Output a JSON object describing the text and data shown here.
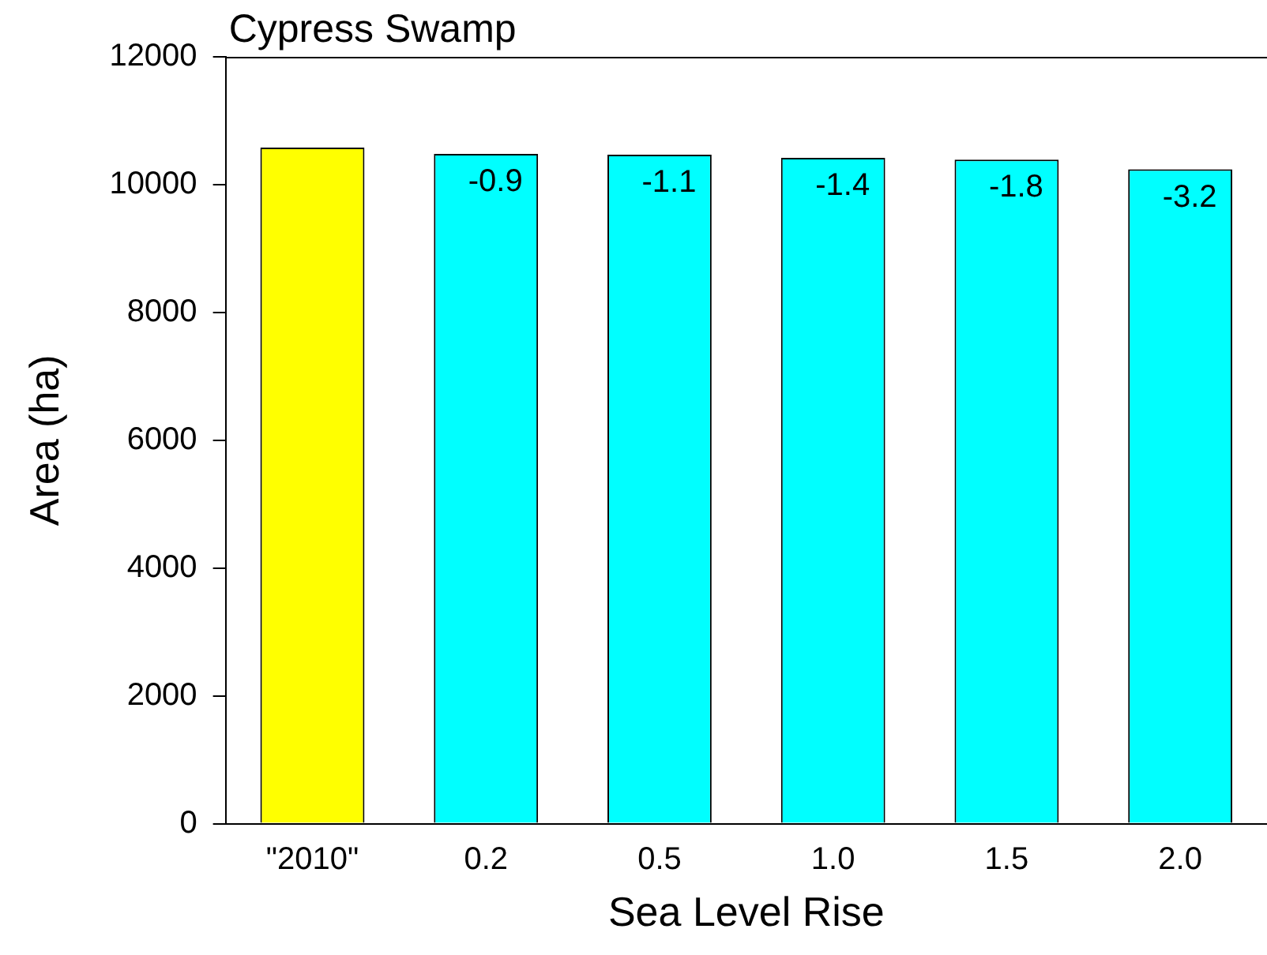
{
  "chart_data": {
    "type": "bar",
    "title": "Cypress Swamp",
    "xlabel": "Sea Level Rise",
    "ylabel": "Area (ha)",
    "categories": [
      "\"2010\"",
      "0.2",
      "0.5",
      "1.0",
      "1.5",
      "2.0"
    ],
    "values": [
      10580,
      10480,
      10470,
      10420,
      10390,
      10240
    ],
    "colors": [
      "#ffff00",
      "#00ffff",
      "#00ffff",
      "#00ffff",
      "#00ffff",
      "#00ffff"
    ],
    "annotations": [
      {
        "text": "-0.9",
        "x": "0.2",
        "y": 10480
      },
      {
        "text": "-1.1",
        "x": "0.5",
        "y": 10470
      },
      {
        "text": "-1.4",
        "x": "1.0",
        "y": 10420
      },
      {
        "text": "-1.8",
        "x": "1.5",
        "y": 10390
      },
      {
        "text": "-3.2",
        "x": "2.0",
        "y": 10240
      }
    ],
    "ylim": [
      0,
      12000
    ],
    "yticks": [
      0,
      2000,
      4000,
      6000,
      8000,
      10000,
      12000
    ],
    "grid": false,
    "legend": false
  }
}
